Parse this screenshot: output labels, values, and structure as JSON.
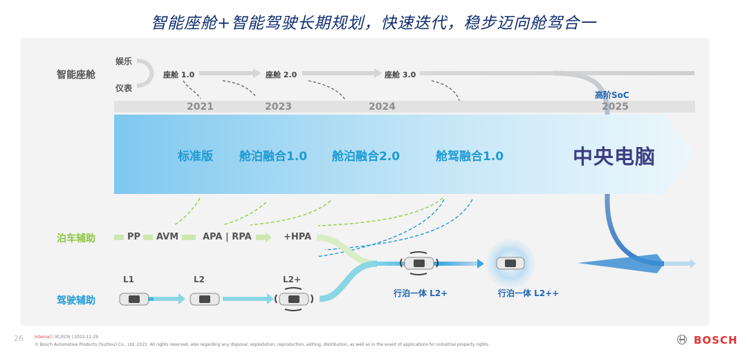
{
  "title": "智能座舱+智能驾驶长期规划，快速迭代，稳步迈向舱驾合一",
  "cockpit": {
    "label": "智能座舱",
    "inputs": [
      "娱乐",
      "仪表"
    ],
    "stages": [
      "座舱 1.0",
      "座舱 2.0",
      "座舱 3.0"
    ],
    "soc": "高阶SoC"
  },
  "years": [
    "2021",
    "2023",
    "2024",
    "2025"
  ],
  "arrow_stages": [
    "标准版",
    "舱泊融合1.0",
    "舱泊融合2.0",
    "舱驾融合1.0"
  ],
  "central": "中央电脑",
  "parking": {
    "label": "泊车辅助",
    "items": [
      "PP",
      "AVM",
      "APA | RPA",
      "+HPA"
    ]
  },
  "driving": {
    "label": "驾驶辅助",
    "levels": [
      "L1",
      "L2",
      "L2+"
    ]
  },
  "merged": [
    "行泊一体 L2+",
    "行泊一体 L2++"
  ],
  "footer": {
    "page": "26",
    "internal": "Internal",
    "meta": " | XC/ECN | 2022-11-29",
    "copyright": "© Bosch Automotive Products (Suzhou) Co., Ltd. 2021. All rights reserved, also regarding any disposal, exploitation, reproduction, editing, distribution, as well as in the event of applications for industrial property rights.",
    "brand": "BOSCH"
  },
  "colors": {
    "title": "#0e2d6e",
    "accent_blue": "#1f9ad4",
    "parking_green": "#8dc63f",
    "central": "#3b3d80",
    "brand_red": "#e53234"
  }
}
